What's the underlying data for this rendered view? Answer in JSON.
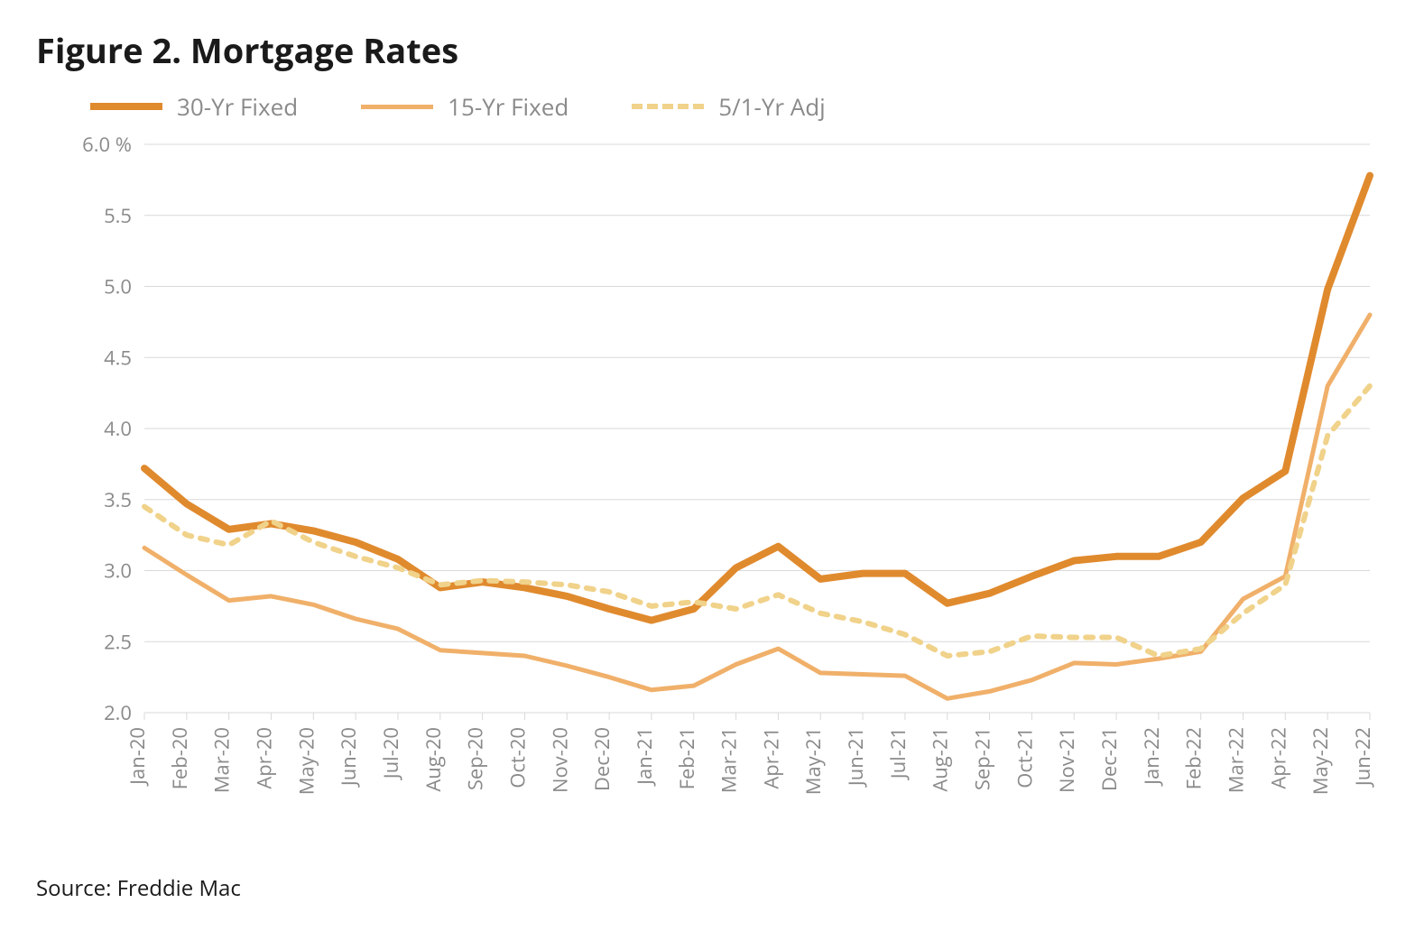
{
  "title": "Figure 2. Mortgage Rates",
  "source": "Source: Freddie Mac",
  "chart": {
    "type": "line",
    "background_color": "#ffffff",
    "grid_color": "#d9d9d9",
    "axis_color": "#d9d9d9",
    "y_unit_label": "%",
    "title_fontsize": 38,
    "legend_fontsize": 26,
    "tick_fontsize": 22,
    "tick_color": "#8a8a8a",
    "ylim": [
      2.0,
      6.0
    ],
    "ytick_step": 0.5,
    "categories": [
      "Jan-20",
      "Feb-20",
      "Mar-20",
      "Apr-20",
      "May-20",
      "Jun-20",
      "Jul-20",
      "Aug-20",
      "Sep-20",
      "Oct-20",
      "Nov-20",
      "Dec-20",
      "Jan-21",
      "Feb-21",
      "Mar-21",
      "Apr-21",
      "May-21",
      "Jun-21",
      "Jul-21",
      "Aug-21",
      "Sep-21",
      "Oct-21",
      "Nov-21",
      "Dec-21",
      "Jan-22",
      "Feb-22",
      "Mar-22",
      "Apr-22",
      "May-22",
      "Jun-22"
    ],
    "series": [
      {
        "name": "30-Yr Fixed",
        "color": "#e08a2e",
        "line_width": 8,
        "dash": "none",
        "values": [
          3.72,
          3.47,
          3.29,
          3.33,
          3.28,
          3.2,
          3.08,
          2.88,
          2.92,
          2.88,
          2.82,
          2.73,
          2.65,
          2.73,
          3.02,
          3.17,
          2.94,
          2.98,
          2.98,
          2.77,
          2.84,
          2.96,
          3.07,
          3.1,
          3.1,
          3.2,
          3.51,
          3.7,
          4.98,
          5.78
        ]
      },
      {
        "name": "15-Yr Fixed",
        "color": "#f0b06a",
        "line_width": 5,
        "dash": "none",
        "values": [
          3.16,
          2.97,
          2.79,
          2.82,
          2.76,
          2.66,
          2.59,
          2.44,
          2.42,
          2.4,
          2.33,
          2.25,
          2.16,
          2.19,
          2.34,
          2.45,
          2.28,
          2.27,
          2.26,
          2.1,
          2.15,
          2.23,
          2.35,
          2.34,
          2.38,
          2.43,
          2.8,
          2.96,
          4.3,
          4.8
        ]
      },
      {
        "name": "5/1-Yr Adj",
        "color": "#f0d28a",
        "line_width": 6,
        "dash": "8 10",
        "values": [
          3.45,
          3.25,
          3.18,
          3.35,
          3.2,
          3.1,
          3.02,
          2.9,
          2.93,
          2.92,
          2.9,
          2.85,
          2.75,
          2.78,
          2.73,
          2.83,
          2.7,
          2.64,
          2.55,
          2.4,
          2.43,
          2.54,
          2.53,
          2.53,
          2.4,
          2.45,
          2.7,
          2.9,
          3.95,
          4.3
        ]
      }
    ]
  }
}
